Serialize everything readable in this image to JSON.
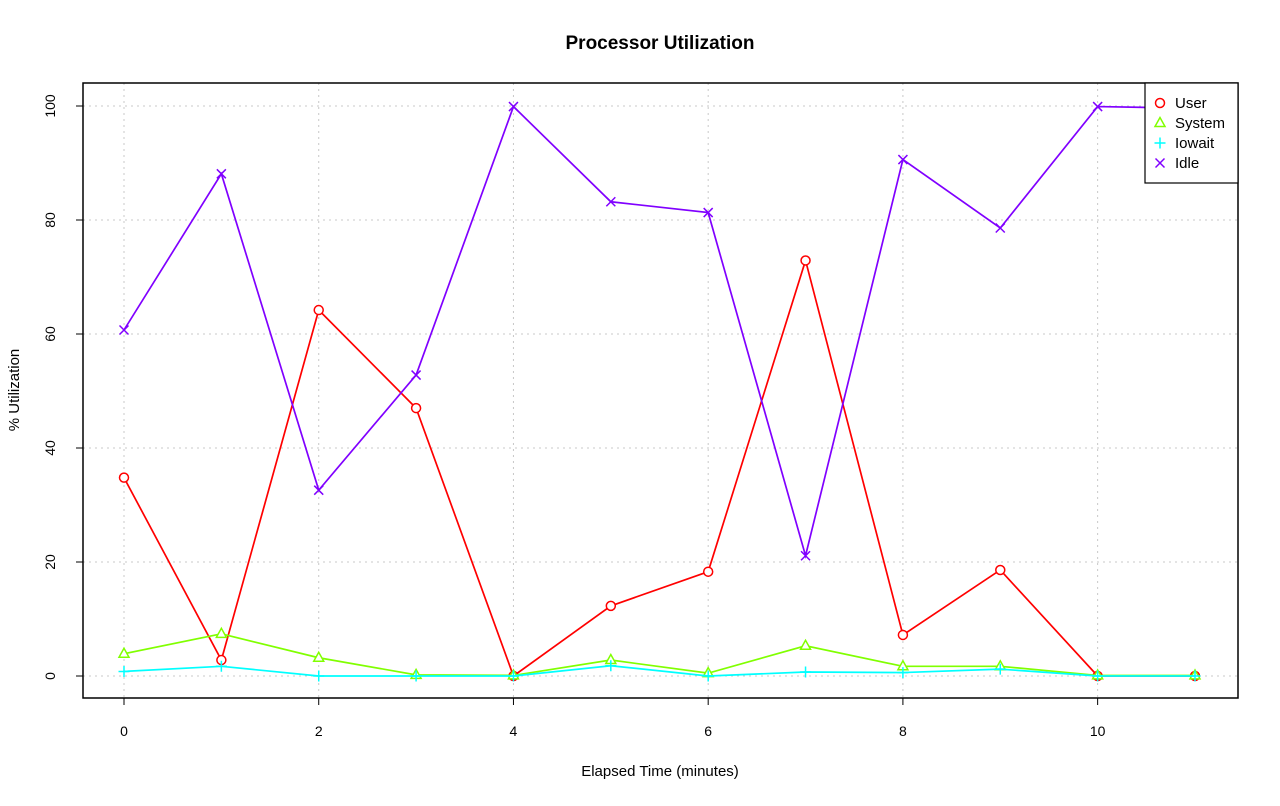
{
  "chart_data": {
    "type": "line",
    "title": "Processor Utilization",
    "xlabel": "Elapsed Time (minutes)",
    "ylabel": "% Utilization",
    "xlim": [
      0,
      11
    ],
    "ylim": [
      0,
      100
    ],
    "x_ticks": [
      0,
      2,
      4,
      6,
      8,
      10
    ],
    "y_ticks": [
      0,
      20,
      40,
      60,
      80,
      100
    ],
    "grid": true,
    "legend_position": "top-right",
    "x": [
      0,
      1,
      2,
      3,
      4,
      5,
      6,
      7,
      8,
      9,
      10,
      11
    ],
    "series": [
      {
        "name": "User",
        "color": "#ff0000",
        "marker": "circle",
        "values": [
          34.8,
          2.8,
          64.2,
          47.0,
          0.0,
          12.3,
          18.3,
          72.9,
          7.2,
          18.6,
          0.0,
          0.0
        ]
      },
      {
        "name": "System",
        "color": "#80ff00",
        "marker": "triangle",
        "values": [
          3.9,
          7.4,
          3.2,
          0.2,
          0.1,
          2.8,
          0.5,
          5.3,
          1.7,
          1.7,
          0.1,
          0.1
        ]
      },
      {
        "name": "Iowait",
        "color": "#00ffff",
        "marker": "plus",
        "values": [
          0.8,
          1.7,
          0.0,
          0.0,
          0.0,
          1.8,
          0.0,
          0.7,
          0.6,
          1.2,
          0.0,
          0.0
        ]
      },
      {
        "name": "Idle",
        "color": "#8000ff",
        "marker": "cross",
        "values": [
          60.7,
          88.1,
          32.6,
          52.8,
          99.9,
          83.2,
          81.3,
          21.1,
          90.6,
          78.6,
          99.9,
          99.6
        ]
      }
    ]
  }
}
